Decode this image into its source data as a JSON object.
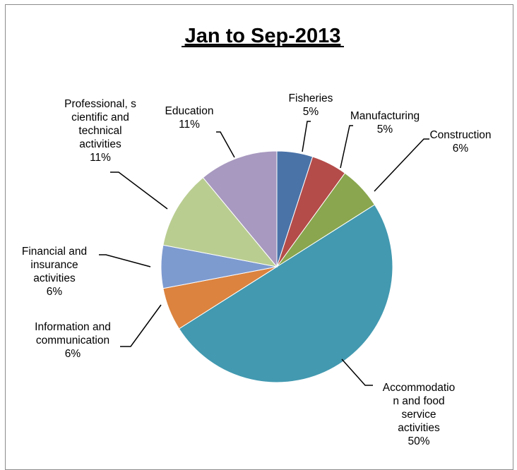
{
  "chart_data": {
    "type": "pie",
    "title": "Jan to Sep-2013",
    "slices": [
      {
        "name": "Fisheries",
        "value": 5,
        "label_lines": [
          "Fisheries",
          "5%"
        ],
        "color": "#4a73a8"
      },
      {
        "name": "Manufacturing",
        "value": 5,
        "label_lines": [
          "Manufacturing",
          "5%"
        ],
        "color": "#b44c4a"
      },
      {
        "name": "Construction",
        "value": 6,
        "label_lines": [
          "Construction",
          "6%"
        ],
        "color": "#8aa64e"
      },
      {
        "name": "Accommodation and food service activities",
        "value": 50,
        "label_lines": [
          "Accommodatio",
          "n and food",
          "service",
          "activities",
          "50%"
        ],
        "color": "#4299b0"
      },
      {
        "name": "Information and communication",
        "value": 6,
        "label_lines": [
          "Information and",
          "communication",
          "6%"
        ],
        "color": "#db833f"
      },
      {
        "name": "Financial and insurance activities",
        "value": 6,
        "label_lines": [
          "Financial and",
          "insurance",
          "activities",
          "6%"
        ],
        "color": "#7e9bd0"
      },
      {
        "name": "Professional, scientific and technical activities",
        "value": 11,
        "label_lines": [
          "Professional, s",
          "cientific and",
          "technical",
          "activities",
          "11%"
        ],
        "color": "#b9cd91"
      },
      {
        "name": "Education",
        "value": 11,
        "label_lines": [
          "Education",
          "11%"
        ],
        "color": "#a899c0"
      }
    ]
  }
}
